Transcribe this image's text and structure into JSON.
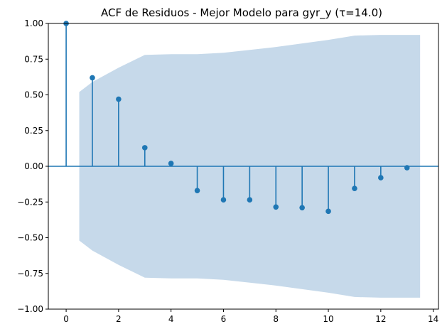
{
  "chart_data": {
    "type": "stem",
    "title": "ACF de Residuos - Mejor Modelo para gyr_y (τ=14.0)",
    "xlabel": "",
    "ylabel": "",
    "xlim": [
      -0.68,
      14.2
    ],
    "ylim": [
      -1.0,
      1.0
    ],
    "x_ticks": [
      0,
      2,
      4,
      6,
      8,
      10,
      12,
      14
    ],
    "y_ticks": [
      -1.0,
      -0.75,
      -0.5,
      -0.25,
      0.0,
      0.25,
      0.5,
      0.75,
      1.0
    ],
    "x_tick_labels": [
      "0",
      "2",
      "4",
      "6",
      "8",
      "10",
      "12",
      "14"
    ],
    "y_tick_labels": [
      "−1.00",
      "−0.75",
      "−0.50",
      "−0.25",
      "0.00",
      "0.25",
      "0.50",
      "0.75",
      "1.00"
    ],
    "grid": false,
    "legend": "none",
    "colors": {
      "stem": "#1f77b4",
      "confidence_band": "#c6d9ea",
      "axes": "#000000"
    },
    "lags": [
      0,
      1,
      2,
      3,
      4,
      5,
      6,
      7,
      8,
      9,
      10,
      11,
      12,
      13
    ],
    "values": [
      1.0,
      0.62,
      0.47,
      0.13,
      0.02,
      -0.17,
      -0.235,
      -0.235,
      -0.285,
      -0.29,
      -0.315,
      -0.155,
      -0.08,
      -0.01
    ],
    "confidence_band": {
      "x": [
        0.5,
        1,
        2,
        3,
        4,
        5,
        6,
        7,
        8,
        9,
        10,
        11,
        12,
        13,
        13.5
      ],
      "upper": [
        0.52,
        0.59,
        0.69,
        0.78,
        0.785,
        0.785,
        0.795,
        0.815,
        0.835,
        0.86,
        0.885,
        0.915,
        0.92,
        0.92,
        0.92
      ]
    }
  }
}
